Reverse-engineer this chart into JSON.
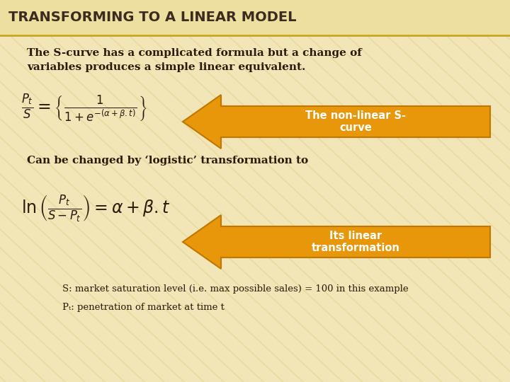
{
  "title": "TRANSFORMING TO A LINEAR MODEL",
  "title_color": "#3d2b1f",
  "bg_color": "#f2e5b8",
  "stripe_color": "#e8d898",
  "title_bar_color": "#eddfa0",
  "title_line_color": "#c8a820",
  "arrow_fill": "#e8960a",
  "arrow_edge": "#c07800",
  "text_color": "#2a1a0a",
  "white": "#ffffff",
  "intro_line1": "The S-curve has a complicated formula but a change of",
  "intro_line2": "variables produces a simple linear equivalent.",
  "mid_text": "Can be changed by ‘logistic’ transformation to",
  "arrow1_label": "The non-linear S-\ncurve",
  "arrow2_label": "Its linear\ntransformation",
  "bottom_line1": "S: market saturation level (i.e. max possible sales) = 100 in this example",
  "bottom_line2": "Pₜ: penetration of market at time t"
}
